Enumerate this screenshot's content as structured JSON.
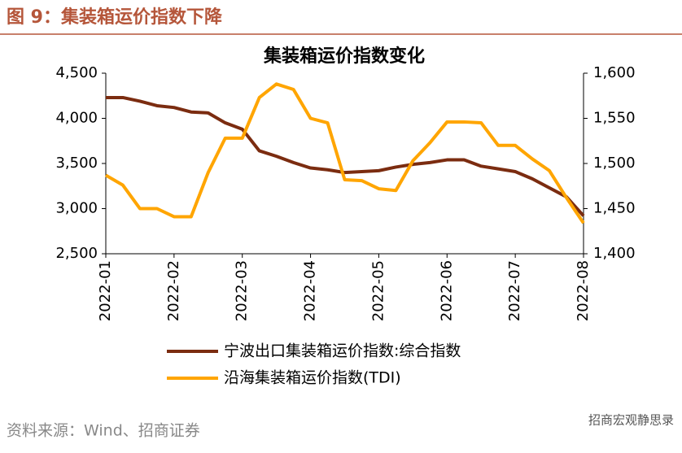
{
  "chart_data": {
    "type": "line",
    "caption": "图 9：集装箱运价指数下降",
    "title": "集装箱运价指数变化",
    "source": "资料来源：Wind、招商证券",
    "watermark": "招商宏观静思录",
    "x": [
      0,
      0.25,
      0.5,
      0.75,
      1,
      1.25,
      1.5,
      1.75,
      2,
      2.25,
      2.5,
      2.75,
      3,
      3.25,
      3.5,
      3.75,
      4,
      4.25,
      4.5,
      4.75,
      5,
      5.25,
      5.5,
      5.75,
      6,
      6.25,
      6.5,
      6.75,
      7
    ],
    "xlim": [
      0,
      7.1
    ],
    "xticks": [
      {
        "value": 0,
        "label": "2022-01"
      },
      {
        "value": 1,
        "label": "2022-02"
      },
      {
        "value": 2,
        "label": "2022-03"
      },
      {
        "value": 3,
        "label": "2022-04"
      },
      {
        "value": 4,
        "label": "2022-05"
      },
      {
        "value": 5,
        "label": "2022-06"
      },
      {
        "value": 6,
        "label": "2022-07"
      },
      {
        "value": 7,
        "label": "2022-08"
      }
    ],
    "ylim": [
      2500,
      4500
    ],
    "yticks": [
      {
        "value": 2500,
        "label": "2,500"
      },
      {
        "value": 3000,
        "label": "3,000"
      },
      {
        "value": 3500,
        "label": "3,500"
      },
      {
        "value": 4000,
        "label": "4,000"
      },
      {
        "value": 4500,
        "label": "4,500"
      }
    ],
    "y2lim": [
      1400,
      1600
    ],
    "y2ticks": [
      {
        "value": 1400,
        "label": "1,400"
      },
      {
        "value": 1450,
        "label": "1,450"
      },
      {
        "value": 1500,
        "label": "1,500"
      },
      {
        "value": 1550,
        "label": "1,550"
      },
      {
        "value": 1600,
        "label": "1,600"
      }
    ],
    "series": [
      {
        "name": "宁波出口集装箱运价指数:综合指数",
        "color": "#7b2c10",
        "values": [
          4230,
          4230,
          4190,
          4140,
          4120,
          4070,
          4060,
          3950,
          3880,
          3640,
          3580,
          3510,
          3450,
          3430,
          3400,
          3410,
          3420,
          3460,
          3490,
          3510,
          3540,
          3540,
          3470,
          3440,
          3410,
          3330,
          3230,
          3130,
          2920
        ]
      },
      {
        "name": "沿海集装箱运价指数(TDI)",
        "color": "#ffa500",
        "axis": "y2",
        "values": [
          1487,
          1476,
          1450,
          1450,
          1441,
          1441,
          1490,
          1528,
          1528,
          1573,
          1588,
          1582,
          1550,
          1545,
          1482,
          1481,
          1472,
          1470,
          1503,
          1523,
          1546,
          1546,
          1545,
          1520,
          1520,
          1505,
          1492,
          1462,
          1434
        ]
      }
    ]
  }
}
